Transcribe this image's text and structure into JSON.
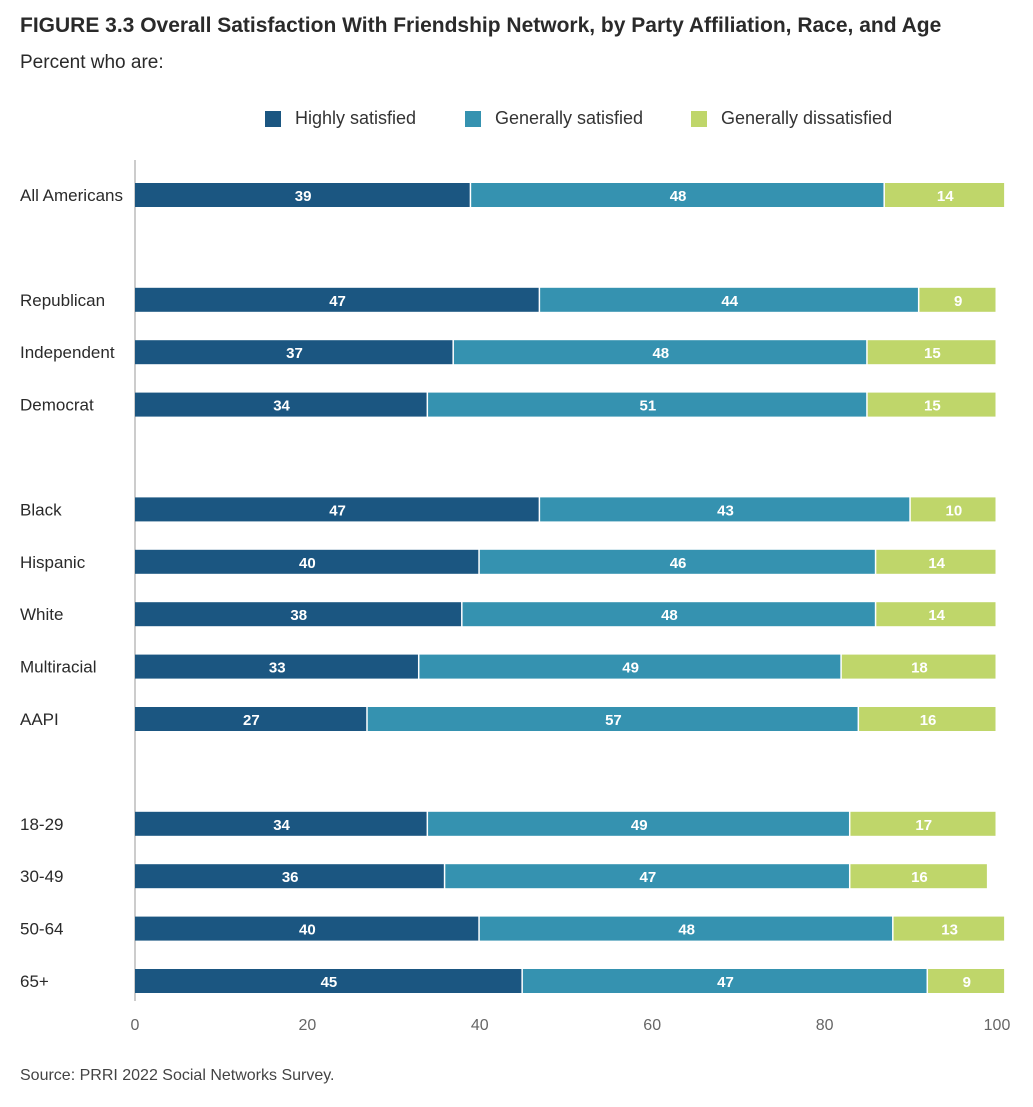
{
  "title": "FIGURE 3.3  Overall Satisfaction With Friendship Network, by Party Affiliation, Race, and Age",
  "subtitle": "Percent who are:",
  "source": "Source: PRRI 2022 Social Networks Survey.",
  "colors": {
    "highly": "#1b5681",
    "generally": "#3592b0",
    "dissatisfied": "#bfd66a"
  },
  "legend": [
    {
      "label": "Highly satisfied",
      "color": "#1b5681"
    },
    {
      "label": "Generally satisfied",
      "color": "#3592b0"
    },
    {
      "label": "Generally dissatisfied",
      "color": "#bfd66a"
    }
  ],
  "chart_data": {
    "type": "bar",
    "orientation": "horizontal",
    "stacked": true,
    "categories": [
      "All Americans",
      "Republican",
      "Independent",
      "Democrat",
      "Black",
      "Hispanic",
      "White",
      "Multiracial",
      "AAPI",
      "18-29",
      "30-49",
      "50-64",
      "65+"
    ],
    "groups": [
      [
        "All Americans"
      ],
      [
        "Republican",
        "Independent",
        "Democrat"
      ],
      [
        "Black",
        "Hispanic",
        "White",
        "Multiracial",
        "AAPI"
      ],
      [
        "18-29",
        "30-49",
        "50-64",
        "65+"
      ]
    ],
    "series": [
      {
        "name": "Highly satisfied",
        "values": [
          39,
          47,
          37,
          34,
          47,
          40,
          38,
          33,
          27,
          34,
          36,
          40,
          45
        ]
      },
      {
        "name": "Generally satisfied",
        "values": [
          48,
          44,
          48,
          51,
          43,
          46,
          48,
          49,
          57,
          49,
          47,
          48,
          47
        ]
      },
      {
        "name": "Generally dissatisfied",
        "values": [
          14,
          9,
          15,
          15,
          10,
          14,
          14,
          18,
          16,
          17,
          16,
          13,
          9
        ]
      }
    ],
    "xlim": [
      0,
      100
    ],
    "xticks": [
      0,
      20,
      40,
      60,
      80,
      100
    ],
    "grid": false,
    "legend_position": "top"
  }
}
